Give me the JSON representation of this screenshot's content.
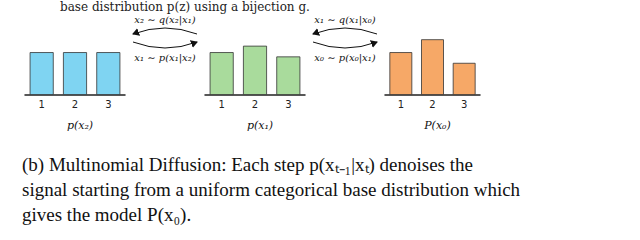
{
  "header": "base distribution p(z) using a bijection g.",
  "chart_data": [
    {
      "type": "bar",
      "title": "p(x₂)",
      "categories": [
        "1",
        "2",
        "3"
      ],
      "values": [
        1.0,
        1.0,
        1.0
      ],
      "color": "#7fd4f2",
      "ylim": [
        0,
        1.4
      ],
      "tick_labels": "x"
    },
    {
      "type": "bar",
      "title": "p(x₁)",
      "categories": [
        "1",
        "2",
        "3"
      ],
      "values": [
        1.0,
        1.15,
        0.9
      ],
      "color": "#a9db9c",
      "ylim": [
        0,
        1.4
      ],
      "tick_labels": "x"
    },
    {
      "type": "bar",
      "title": "P(x₀)",
      "categories": [
        "1",
        "2",
        "3"
      ],
      "values": [
        1.0,
        1.3,
        0.75
      ],
      "color": "#f6a867",
      "ylim": [
        0,
        1.4
      ],
      "tick_labels": "x"
    }
  ],
  "transitions": [
    {
      "forward": "x₂ ∼ q(x₂|x₁)",
      "backward": "x₁ ∼ p(x₁|x₂)"
    },
    {
      "forward": "x₁ ∼ q(x₁|x₀)",
      "backward": "x₀ ∼ p(x₀|x₁)"
    }
  ],
  "caption": [
    "(b) Multinomial Diffusion: Each step p(xₜ₋₁|xₜ) denoises the",
    "signal starting from a uniform categorical base distribution which",
    "gives the model P(x₀)."
  ]
}
